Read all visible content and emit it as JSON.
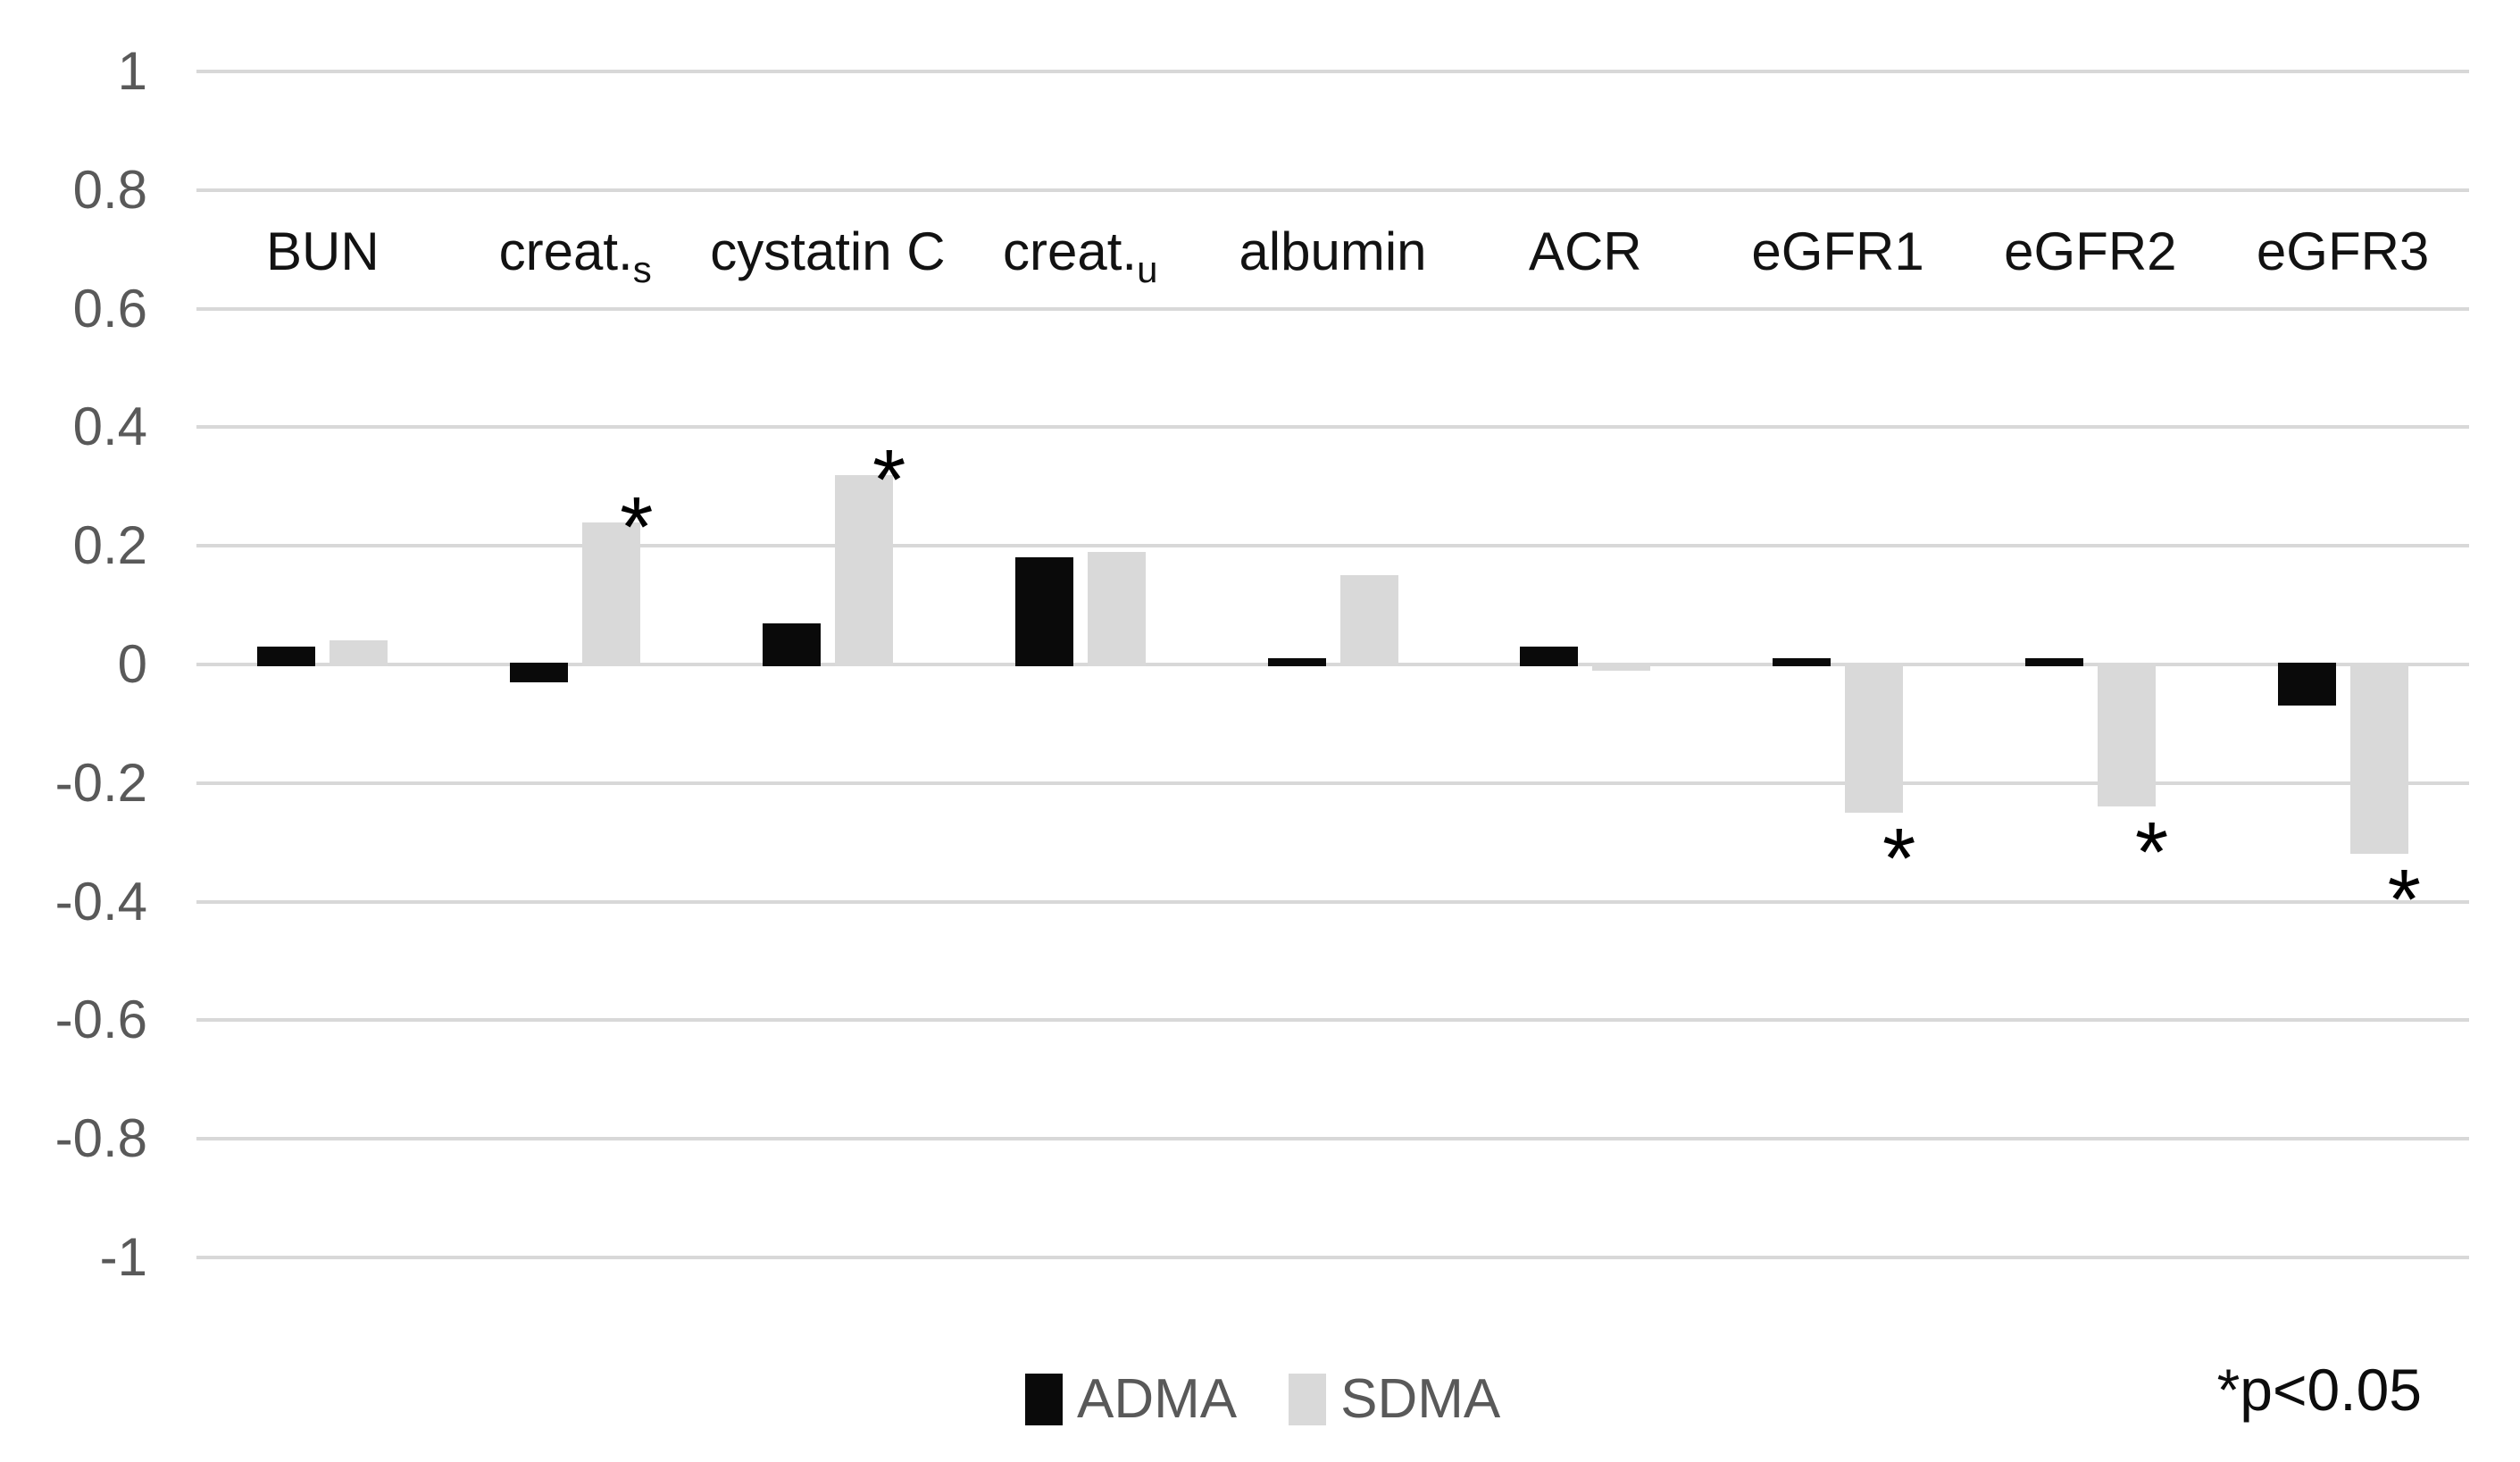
{
  "chart_data": {
    "type": "bar",
    "title": "",
    "xlabel": "",
    "ylabel": "",
    "categories": [
      {
        "label": "BUN",
        "subscript": ""
      },
      {
        "label": "creat.",
        "subscript": "s"
      },
      {
        "label": "cystatin C",
        "subscript": ""
      },
      {
        "label": "creat.",
        "subscript": "u"
      },
      {
        "label": "albumin",
        "subscript": ""
      },
      {
        "label": "ACR",
        "subscript": ""
      },
      {
        "label": "eGFR1",
        "subscript": ""
      },
      {
        "label": "eGFR2",
        "subscript": ""
      },
      {
        "label": "eGFR3",
        "subscript": ""
      }
    ],
    "series": [
      {
        "name": "ADMA",
        "color": "#0a0a0a",
        "values": [
          0.03,
          -0.03,
          0.07,
          0.18,
          0.01,
          0.03,
          0.01,
          0.01,
          -0.07
        ],
        "significant": [
          false,
          false,
          false,
          false,
          false,
          false,
          false,
          false,
          false
        ]
      },
      {
        "name": "SDMA",
        "color": "#d9d9d9",
        "values": [
          0.04,
          0.24,
          0.32,
          0.19,
          0.15,
          -0.01,
          -0.25,
          -0.24,
          -0.32
        ],
        "significant": [
          false,
          true,
          true,
          false,
          false,
          false,
          true,
          true,
          true
        ]
      }
    ],
    "y_axis": {
      "min": -1,
      "max": 1,
      "step": 0.2,
      "tick_labels": [
        "1",
        "0.8",
        "0.6",
        "0.4",
        "0.2",
        "0",
        "-0.2",
        "-0.4",
        "-0.6",
        "-0.8",
        "-1"
      ]
    },
    "grid": true,
    "legend_position": "bottom",
    "significance_marker": "*",
    "note": "*p<0.05"
  },
  "colors": {
    "background": "#ffffff",
    "gridline": "#d8d8d8",
    "axis_text": "#595959",
    "category_text": "#121212",
    "adma_bar": "#0a0a0a",
    "sdma_bar": "#d9d9d9",
    "note_text": "#0d0d0d"
  }
}
